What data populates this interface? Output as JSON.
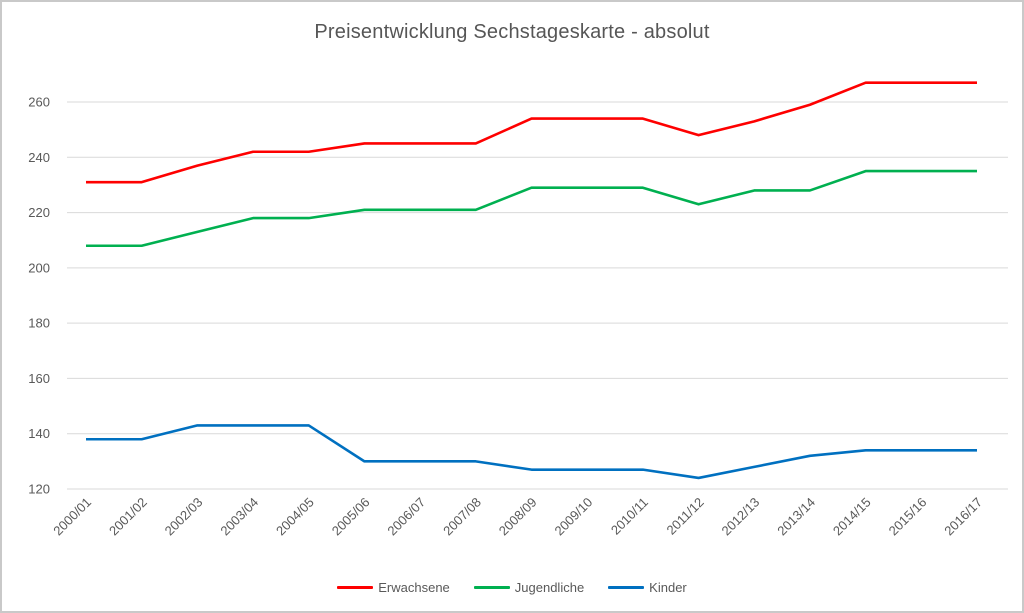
{
  "chart_data": {
    "type": "line",
    "title": "Preisentwicklung Sechstageskarte - absolut",
    "xlabel": "",
    "ylabel": "",
    "categories": [
      "2000/01",
      "2001/02",
      "2002/03",
      "2003/04",
      "2004/05",
      "2005/06",
      "2006/07",
      "2007/08",
      "2008/09",
      "2009/10",
      "2010/11",
      "2011/12",
      "2012/13",
      "2013/14",
      "2014/15",
      "2015/16",
      "2016/17"
    ],
    "series": [
      {
        "name": "Erwachsene",
        "color": "#fe0000",
        "values": [
          231,
          231,
          237,
          242,
          242,
          245,
          245,
          245,
          254,
          254,
          254,
          248,
          253,
          259,
          267,
          267,
          267
        ]
      },
      {
        "name": "Jugendliche",
        "color": "#00b050",
        "values": [
          208,
          208,
          213,
          218,
          218,
          221,
          221,
          221,
          229,
          229,
          229,
          223,
          228,
          228,
          235,
          235,
          235
        ]
      },
      {
        "name": "Kinder",
        "color": "#0070c0",
        "values": [
          138,
          138,
          143,
          143,
          143,
          130,
          130,
          130,
          127,
          127,
          127,
          124,
          128,
          132,
          134,
          134,
          134
        ]
      }
    ],
    "ylim": [
      120,
      270
    ],
    "yticks": [
      120,
      140,
      160,
      180,
      200,
      220,
      240,
      260
    ],
    "grid": true,
    "legend_position": "bottom",
    "gridline_color": "#d9d9d9",
    "text_color": "#595959"
  }
}
